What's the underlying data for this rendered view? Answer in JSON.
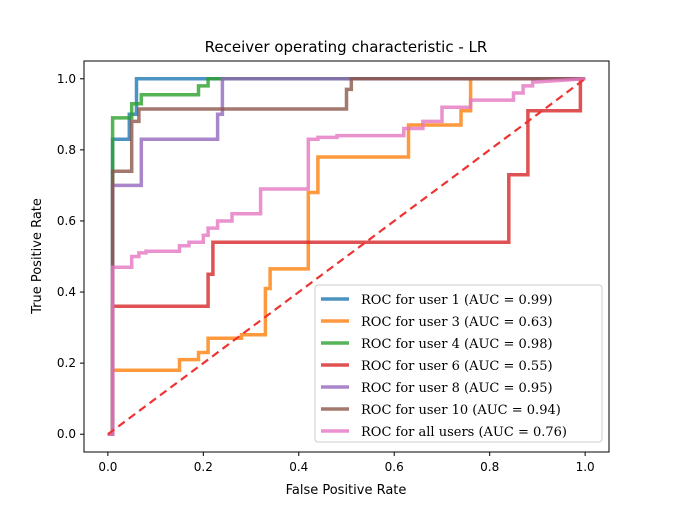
{
  "chart_data": {
    "type": "line",
    "title": "Receiver operating characteristic - LR",
    "xlabel": "False Positive Rate",
    "ylabel": "True Positive Rate",
    "xlim": [
      -0.05,
      1.05
    ],
    "ylim": [
      -0.05,
      1.05
    ],
    "xticks": [
      "0.0",
      "0.2",
      "0.4",
      "0.6",
      "0.8",
      "1.0"
    ],
    "yticks": [
      "0.0",
      "0.2",
      "0.4",
      "0.6",
      "0.8",
      "1.0"
    ],
    "grid": false,
    "legend_position": "lower-right",
    "diagonal": {
      "x": [
        0,
        1
      ],
      "y": [
        0,
        1
      ],
      "color": "#ee3333",
      "style": "dashed"
    },
    "series": [
      {
        "name": "ROC for user 1 (AUC = 0.99)",
        "color": "#1f77b4",
        "x": [
          0.0,
          0.01,
          0.01,
          0.045,
          0.045,
          0.06,
          0.06,
          1.0
        ],
        "y": [
          0.0,
          0.0,
          0.83,
          0.83,
          0.9,
          0.9,
          1.0,
          1.0
        ]
      },
      {
        "name": "ROC for user 3 (AUC = 0.63)",
        "color": "#ff7f0e",
        "x": [
          0.0,
          0.01,
          0.01,
          0.15,
          0.15,
          0.19,
          0.19,
          0.21,
          0.21,
          0.28,
          0.28,
          0.33,
          0.33,
          0.34,
          0.34,
          0.42,
          0.42,
          0.44,
          0.44,
          0.63,
          0.63,
          0.69,
          0.69,
          0.74,
          0.74,
          0.76,
          0.76,
          1.0
        ],
        "y": [
          0.0,
          0.0,
          0.18,
          0.18,
          0.21,
          0.21,
          0.23,
          0.23,
          0.27,
          0.27,
          0.28,
          0.28,
          0.41,
          0.41,
          0.465,
          0.465,
          0.68,
          0.68,
          0.78,
          0.78,
          0.87,
          0.87,
          0.87,
          0.87,
          0.91,
          0.91,
          1.0,
          1.0
        ]
      },
      {
        "name": "ROC for user 4 (AUC = 0.98)",
        "color": "#2ca02c",
        "x": [
          0.0,
          0.01,
          0.01,
          0.05,
          0.05,
          0.07,
          0.07,
          0.19,
          0.19,
          0.21,
          0.21,
          1.0
        ],
        "y": [
          0.0,
          0.0,
          0.89,
          0.89,
          0.93,
          0.93,
          0.955,
          0.955,
          0.98,
          0.98,
          1.0,
          1.0
        ]
      },
      {
        "name": "ROC for user 6 (AUC = 0.55)",
        "color": "#d62728",
        "x": [
          0.0,
          0.01,
          0.01,
          0.21,
          0.21,
          0.22,
          0.22,
          0.84,
          0.84,
          0.85,
          0.85,
          0.88,
          0.88,
          0.9,
          0.9,
          0.99,
          0.99,
          1.0
        ],
        "y": [
          0.0,
          0.0,
          0.36,
          0.36,
          0.45,
          0.45,
          0.54,
          0.54,
          0.73,
          0.73,
          0.73,
          0.73,
          0.91,
          0.91,
          0.91,
          0.91,
          1.0,
          1.0
        ]
      },
      {
        "name": "ROC for user 8 (AUC = 0.95)",
        "color": "#9467bd",
        "x": [
          0.0,
          0.01,
          0.01,
          0.07,
          0.07,
          0.23,
          0.23,
          0.24,
          0.24,
          1.0
        ],
        "y": [
          0.0,
          0.0,
          0.7,
          0.7,
          0.83,
          0.83,
          0.9,
          0.9,
          1.0,
          1.0
        ]
      },
      {
        "name": "ROC for user 10 (AUC = 0.94)",
        "color": "#8c564b",
        "x": [
          0.0,
          0.01,
          0.01,
          0.05,
          0.05,
          0.065,
          0.065,
          0.5,
          0.5,
          0.51,
          0.51,
          1.0
        ],
        "y": [
          0.0,
          0.0,
          0.74,
          0.74,
          0.88,
          0.88,
          0.915,
          0.915,
          0.97,
          0.97,
          1.0,
          1.0
        ]
      },
      {
        "name": "ROC for all users (AUC = 0.76)",
        "color": "#e377c2",
        "x": [
          0.0,
          0.01,
          0.01,
          0.05,
          0.05,
          0.065,
          0.065,
          0.08,
          0.08,
          0.15,
          0.15,
          0.17,
          0.17,
          0.2,
          0.2,
          0.21,
          0.21,
          0.23,
          0.23,
          0.26,
          0.26,
          0.32,
          0.32,
          0.33,
          0.33,
          0.38,
          0.38,
          0.42,
          0.42,
          0.44,
          0.44,
          0.48,
          0.48,
          0.62,
          0.62,
          0.66,
          0.66,
          0.68,
          0.68,
          0.7,
          0.7,
          0.76,
          0.76,
          0.8,
          0.8,
          0.85,
          0.85,
          0.87,
          0.87,
          0.89,
          0.89,
          1.0
        ],
        "y": [
          0.0,
          0.0,
          0.47,
          0.47,
          0.5,
          0.5,
          0.51,
          0.51,
          0.515,
          0.515,
          0.53,
          0.53,
          0.54,
          0.54,
          0.56,
          0.56,
          0.58,
          0.58,
          0.6,
          0.6,
          0.62,
          0.62,
          0.69,
          0.69,
          0.69,
          0.69,
          0.69,
          0.69,
          0.83,
          0.83,
          0.835,
          0.835,
          0.84,
          0.84,
          0.86,
          0.86,
          0.88,
          0.88,
          0.88,
          0.88,
          0.92,
          0.92,
          0.94,
          0.94,
          0.94,
          0.94,
          0.96,
          0.96,
          0.98,
          0.98,
          0.99,
          1.0
        ]
      }
    ]
  }
}
